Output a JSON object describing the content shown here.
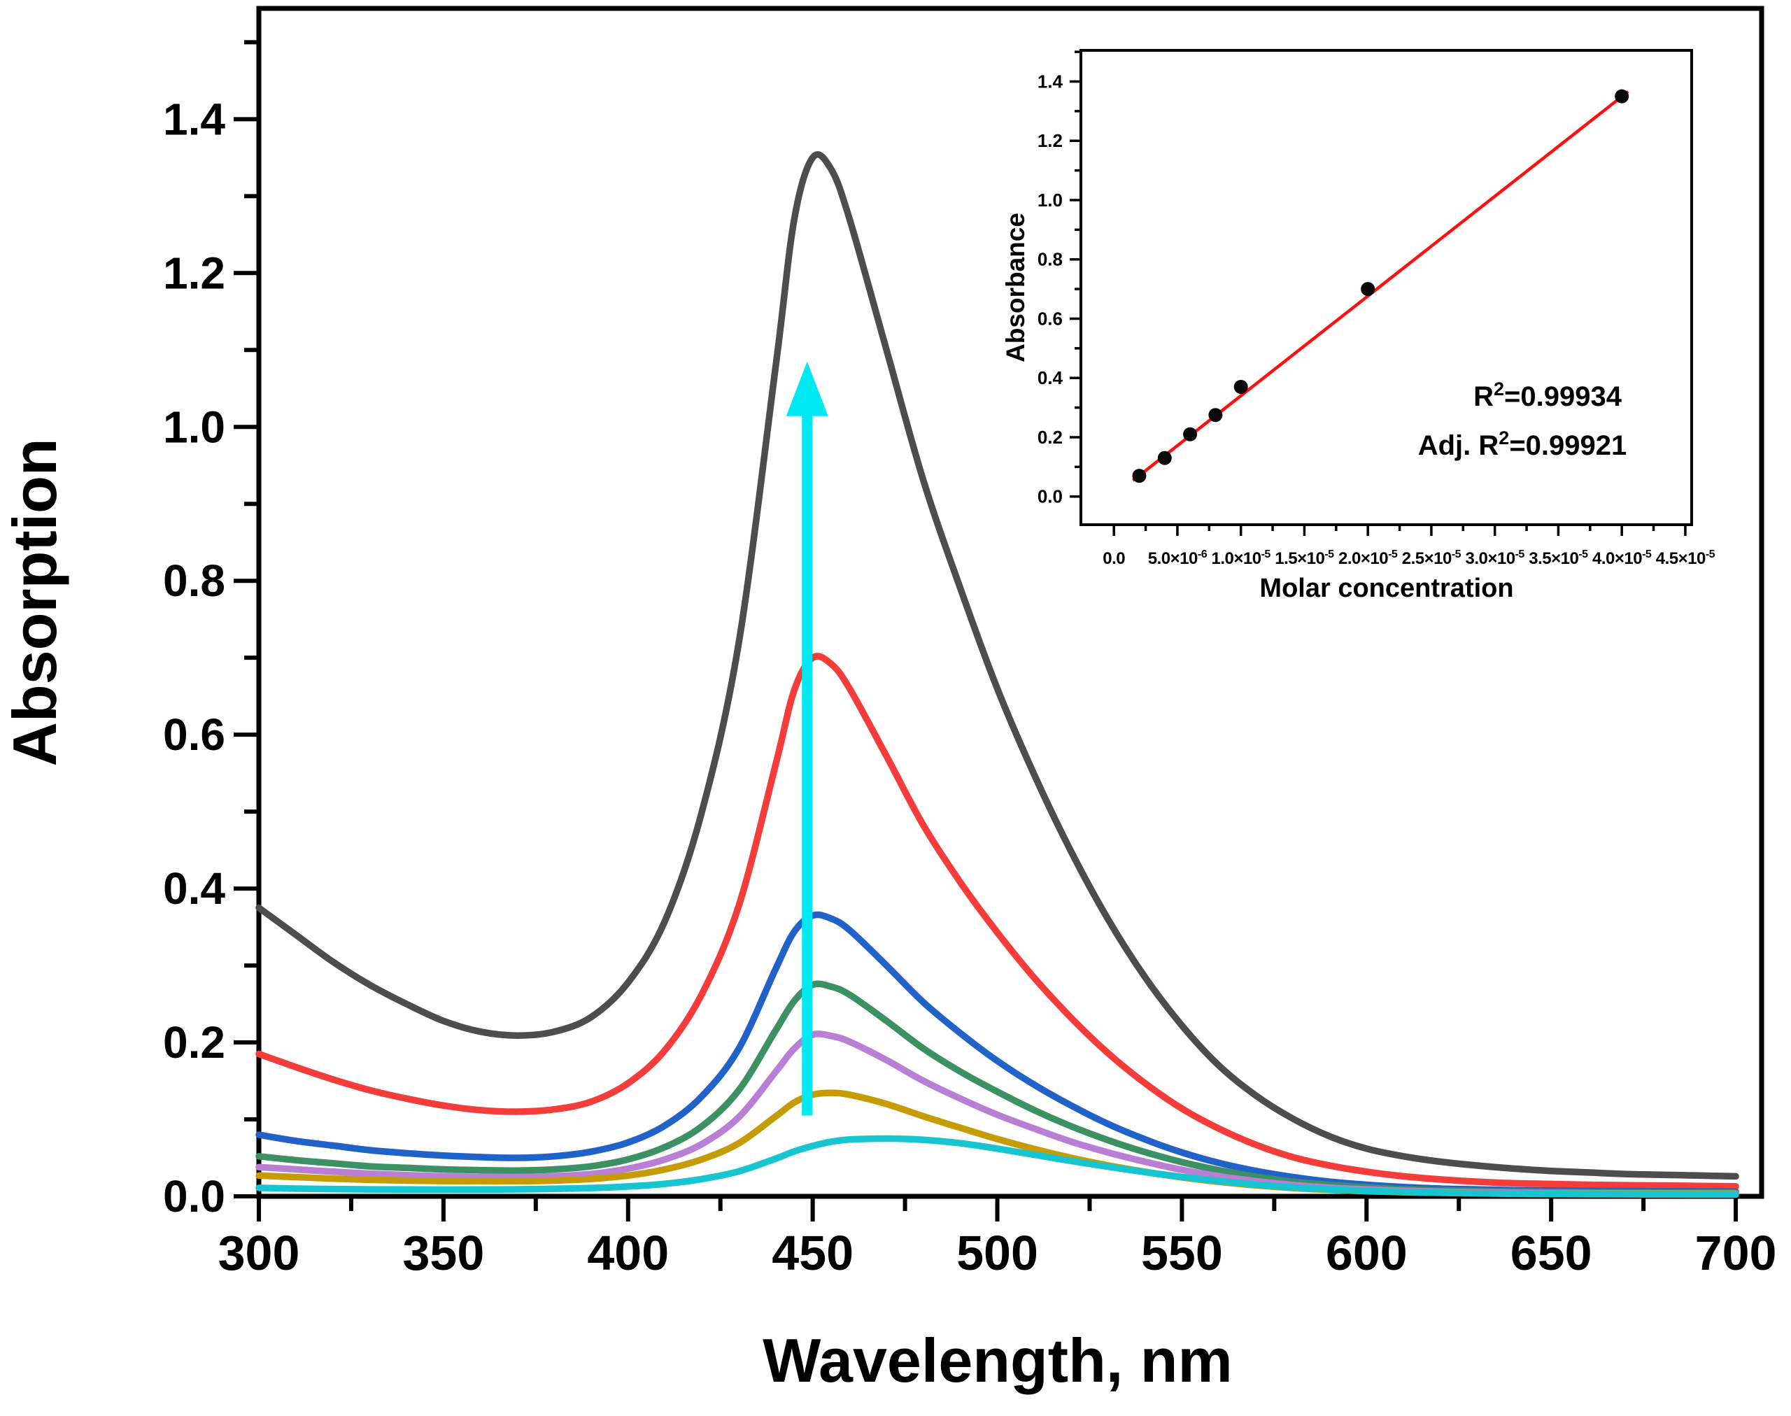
{
  "chart_data": [
    {
      "id": "uv-vis-spectra",
      "type": "line",
      "title": "",
      "xlabel": "Wavelength, nm",
      "ylabel": "Absorption",
      "xlim": [
        300,
        707
      ],
      "ylim": [
        0,
        1.544
      ],
      "grid": false,
      "frame": true,
      "x_major_ticks": [
        300,
        350,
        400,
        450,
        500,
        550,
        600,
        650,
        700
      ],
      "x_major_labels": [
        "300",
        "350",
        "400",
        "450",
        "500",
        "550",
        "600",
        "650",
        "700"
      ],
      "x_minor_ticks": [
        325,
        375,
        425,
        475,
        525,
        575,
        625,
        675
      ],
      "y_major_ticks": [
        0,
        0.2,
        0.4,
        0.6,
        0.8,
        1.0,
        1.2,
        1.4
      ],
      "y_major_labels": [
        "0.0",
        "0.2",
        "0.4",
        "0.6",
        "0.8",
        "1.0",
        "1.2",
        "1.4"
      ],
      "y_minor_ticks": [
        0.1,
        0.3,
        0.5,
        0.7,
        0.9,
        1.1,
        1.3,
        1.5
      ],
      "x": [
        300,
        310,
        320,
        330,
        340,
        350,
        360,
        370,
        380,
        390,
        400,
        410,
        420,
        430,
        440,
        445,
        450,
        455,
        460,
        470,
        480,
        490,
        500,
        510,
        520,
        530,
        540,
        550,
        560,
        570,
        580,
        590,
        600,
        610,
        620,
        630,
        640,
        650,
        660,
        670,
        680,
        690,
        700
      ],
      "series": [
        {
          "name": "spectrum-dark-gray",
          "color": "#4d4d4d",
          "peak_wavelength_nm": 450,
          "peak_absorbance": 1.35,
          "y": [
            0.375,
            0.34,
            0.305,
            0.275,
            0.25,
            0.228,
            0.214,
            0.209,
            0.214,
            0.233,
            0.278,
            0.358,
            0.5,
            0.72,
            1.08,
            1.27,
            1.35,
            1.335,
            1.27,
            1.1,
            0.93,
            0.79,
            0.66,
            0.548,
            0.448,
            0.36,
            0.285,
            0.222,
            0.17,
            0.131,
            0.101,
            0.078,
            0.062,
            0.052,
            0.045,
            0.04,
            0.036,
            0.033,
            0.031,
            0.029,
            0.028,
            0.027,
            0.026
          ]
        },
        {
          "name": "spectrum-red",
          "color": "#f43c3a",
          "peak_wavelength_nm": 450,
          "peak_absorbance": 0.7,
          "y": [
            0.185,
            0.168,
            0.152,
            0.138,
            0.127,
            0.118,
            0.112,
            0.11,
            0.113,
            0.123,
            0.147,
            0.19,
            0.263,
            0.378,
            0.562,
            0.658,
            0.7,
            0.692,
            0.66,
            0.572,
            0.482,
            0.408,
            0.343,
            0.284,
            0.232,
            0.186,
            0.147,
            0.114,
            0.088,
            0.067,
            0.051,
            0.04,
            0.032,
            0.026,
            0.022,
            0.019,
            0.017,
            0.016,
            0.015,
            0.0145,
            0.014,
            0.0135,
            0.013
          ]
        },
        {
          "name": "spectrum-blue",
          "color": "#2162c9",
          "peak_wavelength_nm": 450,
          "peak_absorbance": 0.365,
          "y": [
            0.08,
            0.072,
            0.066,
            0.06,
            0.056,
            0.053,
            0.051,
            0.05,
            0.052,
            0.058,
            0.07,
            0.092,
            0.13,
            0.192,
            0.296,
            0.344,
            0.365,
            0.361,
            0.346,
            0.3,
            0.252,
            0.212,
            0.176,
            0.145,
            0.118,
            0.094,
            0.074,
            0.057,
            0.0435,
            0.033,
            0.025,
            0.019,
            0.015,
            0.012,
            0.01,
            0.009,
            0.008,
            0.0075,
            0.007,
            0.0068,
            0.0066,
            0.0064,
            0.0062
          ]
        },
        {
          "name": "spectrum-green",
          "color": "#3c9164",
          "peak_wavelength_nm": 450,
          "peak_absorbance": 0.275,
          "y": [
            0.052,
            0.047,
            0.043,
            0.039,
            0.037,
            0.035,
            0.034,
            0.0335,
            0.035,
            0.039,
            0.048,
            0.064,
            0.091,
            0.138,
            0.216,
            0.254,
            0.275,
            0.2725,
            0.262,
            0.228,
            0.192,
            0.162,
            0.136,
            0.112,
            0.091,
            0.073,
            0.0575,
            0.0445,
            0.034,
            0.0255,
            0.019,
            0.0148,
            0.0115,
            0.0092,
            0.0078,
            0.0068,
            0.0061,
            0.0057,
            0.0054,
            0.0052,
            0.005,
            0.0049,
            0.0048
          ]
        },
        {
          "name": "spectrum-purple",
          "color": "#b87fd4",
          "peak_wavelength_nm": 450,
          "peak_absorbance": 0.21,
          "y": [
            0.038,
            0.035,
            0.032,
            0.0295,
            0.0275,
            0.026,
            0.0253,
            0.0251,
            0.0262,
            0.029,
            0.036,
            0.048,
            0.068,
            0.103,
            0.162,
            0.192,
            0.21,
            0.2085,
            0.201,
            0.177,
            0.15,
            0.127,
            0.106,
            0.088,
            0.071,
            0.057,
            0.045,
            0.0345,
            0.0262,
            0.0197,
            0.0148,
            0.0113,
            0.0089,
            0.0072,
            0.006,
            0.0052,
            0.0047,
            0.0043,
            0.0041,
            0.0039,
            0.0038,
            0.0037,
            0.0036
          ]
        },
        {
          "name": "spectrum-dark-yellow",
          "color": "#c59c05",
          "peak_wavelength_nm": 455,
          "peak_absorbance": 0.135,
          "y": [
            0.027,
            0.025,
            0.023,
            0.0215,
            0.0205,
            0.0199,
            0.0196,
            0.0197,
            0.0205,
            0.0226,
            0.027,
            0.035,
            0.048,
            0.069,
            0.104,
            0.122,
            0.132,
            0.1345,
            0.132,
            0.12,
            0.104,
            0.089,
            0.0745,
            0.0615,
            0.05,
            0.0402,
            0.0318,
            0.0246,
            0.0188,
            0.0143,
            0.0108,
            0.0084,
            0.0066,
            0.0054,
            0.0046,
            0.004,
            0.0036,
            0.0033,
            0.0031,
            0.003,
            0.0029,
            0.0028,
            0.0027
          ]
        },
        {
          "name": "spectrum-cyan",
          "color": "#16c5cf",
          "peak_wavelength_nm": 465,
          "peak_absorbance": 0.075,
          "y": [
            0.011,
            0.01,
            0.0095,
            0.009,
            0.0088,
            0.0087,
            0.0088,
            0.0091,
            0.0097,
            0.0108,
            0.0128,
            0.0163,
            0.0225,
            0.0325,
            0.049,
            0.0585,
            0.0655,
            0.071,
            0.0738,
            0.075,
            0.0735,
            0.069,
            0.062,
            0.054,
            0.046,
            0.0385,
            0.0315,
            0.0252,
            0.0198,
            0.0153,
            0.0117,
            0.009,
            0.007,
            0.0056,
            0.0046,
            0.0039,
            0.0034,
            0.003,
            0.0027,
            0.0026,
            0.0025,
            0.0024,
            0.0023
          ]
        }
      ],
      "arrow": {
        "x_nm": 448.5,
        "y_from": 0.105,
        "y_to": 1.085,
        "color": "#00e9f2"
      }
    },
    {
      "id": "calibration-inset",
      "type": "scatter",
      "title": "",
      "xlabel": "Molar concentration",
      "ylabel": "Absorbance",
      "xlim": [
        -2.6e-06,
        4.55e-05
      ],
      "ylim": [
        -0.095,
        1.505
      ],
      "grid": false,
      "frame": true,
      "x_major_ticks": [
        0,
        5e-06,
        1e-05,
        1.5e-05,
        2e-05,
        2.5e-05,
        3e-05,
        3.5e-05,
        4e-05,
        4.5e-05
      ],
      "x_major_labels": [
        "0.0",
        "5.0×10^{-6}",
        "1.0×10^{-5}",
        "1.5×10^{-5}",
        "2.0×10^{-5}",
        "2.5×10^{-5}",
        "3.0×10^{-5}",
        "3.5×10^{-5}",
        "4.0×10^{-5}",
        "4.5×10^{-5}"
      ],
      "x_minor_ticks": [
        2.5e-06,
        7.5e-06,
        1.25e-05,
        1.75e-05,
        2.25e-05,
        2.75e-05,
        3.25e-05,
        3.75e-05,
        4.25e-05
      ],
      "y_major_ticks": [
        0,
        0.2,
        0.4,
        0.6,
        0.8,
        1.0,
        1.2,
        1.4
      ],
      "y_major_labels": [
        "0.0",
        "0.2",
        "0.4",
        "0.6",
        "0.8",
        "1.0",
        "1.2",
        "1.4"
      ],
      "y_minor_ticks": [
        0.1,
        0.3,
        0.5,
        0.7,
        0.9,
        1.1,
        1.3,
        1.5
      ],
      "points": {
        "color": "#0a0a0a",
        "x": [
          2e-06,
          4e-06,
          6e-06,
          8e-06,
          1e-05,
          2e-05,
          4e-05
        ],
        "y": [
          0.07,
          0.13,
          0.21,
          0.275,
          0.37,
          0.7,
          1.35
        ]
      },
      "fit_line": {
        "color": "#ff1010",
        "x1": 1.5e-06,
        "y1": 0.054,
        "x2": 4.05e-05,
        "y2": 1.366
      },
      "annotations": [
        {
          "text": "R^{2}=0.99934"
        },
        {
          "text": "Adj. R^{2}=0.99921"
        }
      ]
    }
  ]
}
